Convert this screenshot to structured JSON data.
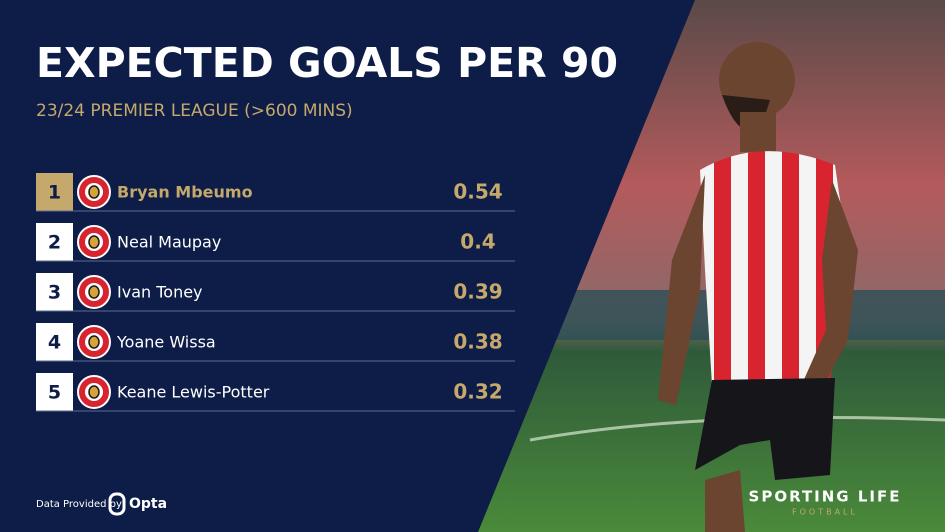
{
  "header": {
    "title": "EXPECTED GOALS PER 90",
    "subtitle": "23/24 PREMIER LEAGUE (>600 MINS)"
  },
  "table": {
    "rows": [
      {
        "rank": 1,
        "name": "Bryan Mbeumo",
        "value": 0.54
      },
      {
        "rank": 2,
        "name": "Neal Maupay",
        "value": 0.4
      },
      {
        "rank": 3,
        "name": "Ivan Toney",
        "value": 0.39
      },
      {
        "rank": 4,
        "name": "Yoane Wissa",
        "value": 0.38
      },
      {
        "rank": 5,
        "name": "Keane Lewis-Potter",
        "value": 0.32
      }
    ]
  },
  "footer": {
    "credit": "Data Provided by",
    "provider": "Opta",
    "brand": "SPORTING LIFE",
    "brand_sub": "FOOTBALL"
  }
}
